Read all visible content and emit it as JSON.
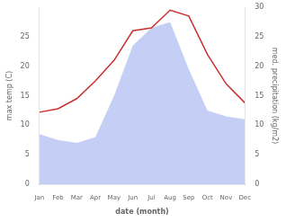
{
  "chart_data": {
    "type": "line",
    "xlabel": "date (month)",
    "ylabel": "max temp (C)",
    "y2label": "med. precipitation (kg/m2)",
    "categories": [
      "Jan",
      "Feb",
      "Mar",
      "Apr",
      "May",
      "Jun",
      "Jul",
      "Aug",
      "Sep",
      "Oct",
      "Nov",
      "Dec"
    ],
    "series": [
      {
        "type": "area",
        "axis": "y2",
        "color": "#c5cff5",
        "values": [
          8.5,
          7.5,
          7.0,
          8.0,
          15.0,
          23.5,
          26.5,
          27.5,
          19.5,
          12.5,
          11.5,
          11.0
        ]
      },
      {
        "type": "line",
        "color": "#c93030",
        "values": [
          12.2,
          12.8,
          14.5,
          17.5,
          21.0,
          26.0,
          26.5,
          29.5,
          28.5,
          22.0,
          17.0,
          13.8
        ]
      }
    ],
    "ylim": [
      0,
      30
    ],
    "yticks": [
      0,
      5,
      10,
      15,
      20,
      25
    ],
    "y2lim": [
      0,
      30
    ],
    "y2ticks": [
      0,
      5,
      10,
      15,
      20,
      25,
      30
    ],
    "grid": false
  }
}
